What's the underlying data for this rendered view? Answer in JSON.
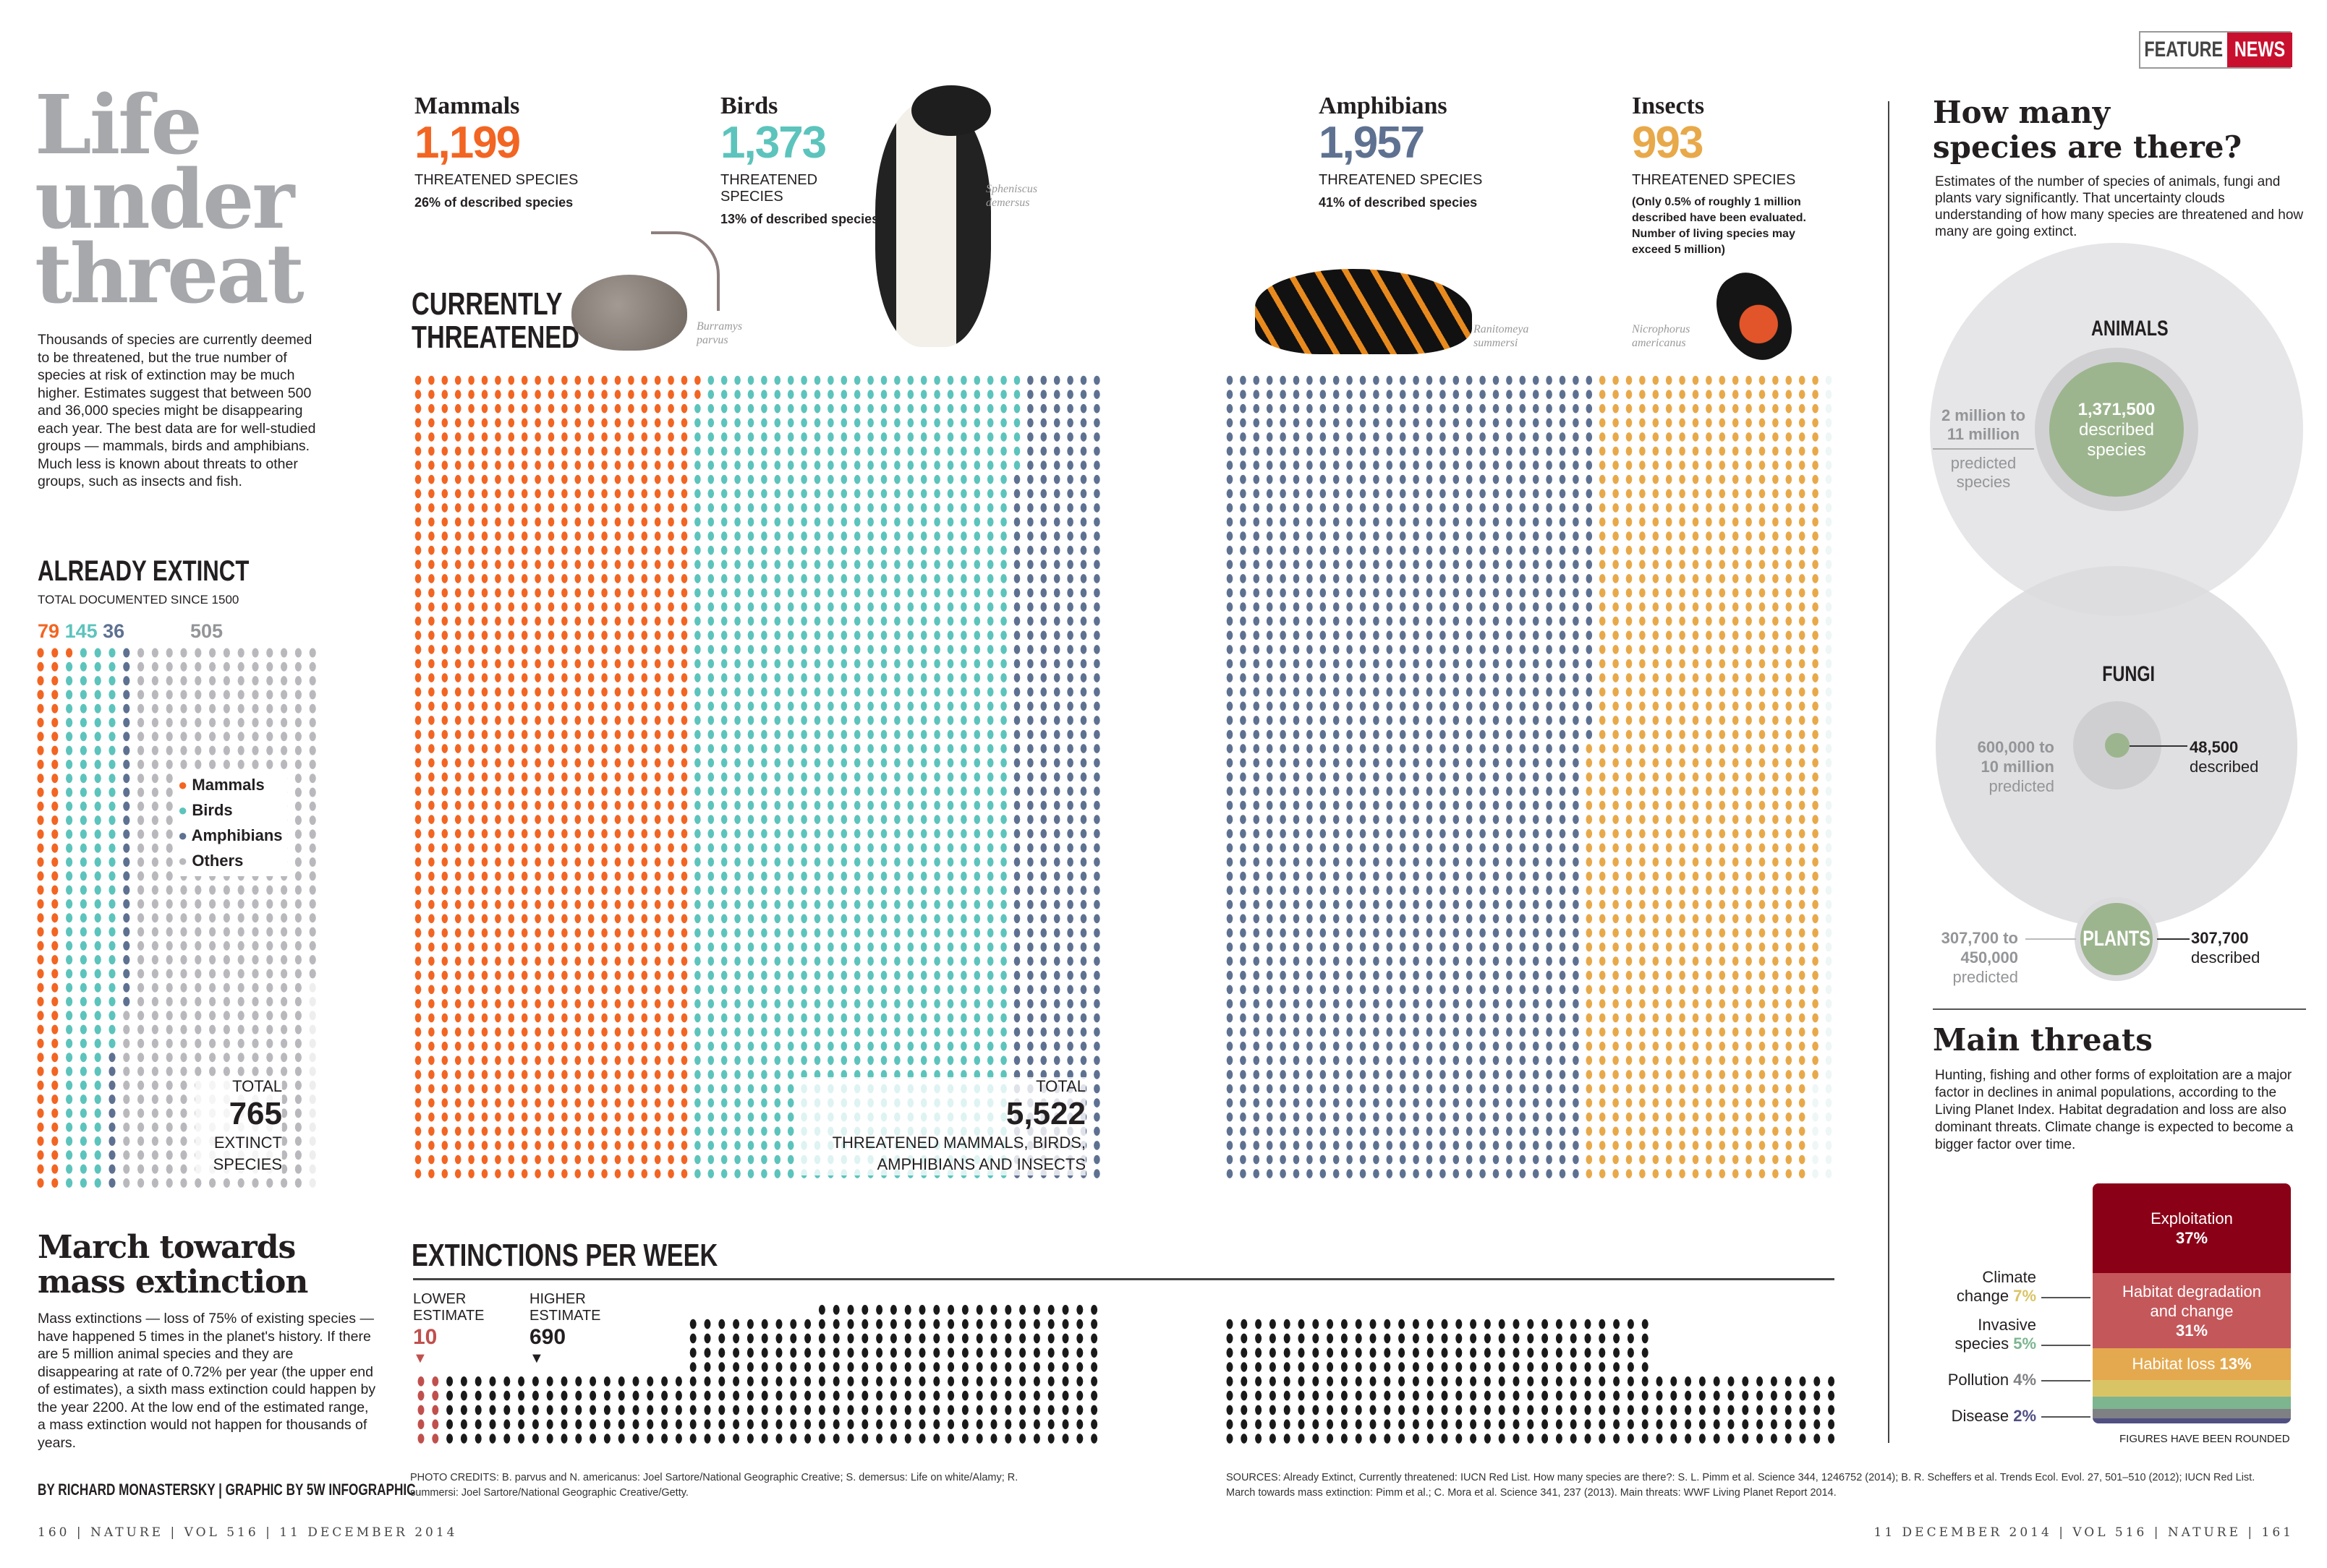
{
  "badge": {
    "left": "FEATURE",
    "right": "NEWS",
    "accent": "#c8102e"
  },
  "title": [
    "Life",
    "under",
    "threat"
  ],
  "intro": "Thousands of species are currently deemed to be threatened, but the true number of species at risk of extinction may be much higher. Estimates suggest that between 500 and 36,000 species might be disappearing each year. The best data are for well-studied groups — mammals, birds and amphibians. Much less is known about threats to other groups, such as insects and fish.",
  "extinct": {
    "heading": "ALREADY EXTINCT",
    "sub": "TOTAL DOCUMENTED SINCE 1500",
    "counts": {
      "mammals": "79",
      "birds": "145",
      "amphibians": "36",
      "others": "505"
    },
    "legend": [
      "Mammals",
      "Birds",
      "Amphibians",
      "Others"
    ],
    "total_label": "TOTAL",
    "total": "765",
    "total_sub1": "EXTINCT",
    "total_sub2": "SPECIES"
  },
  "threatened": {
    "heading1": "CURRENTLY",
    "heading2": "THREATENED",
    "groups": [
      {
        "name": "Mammals",
        "count": "1,199",
        "sub": "THREATENED SPECIES",
        "note": "26% of described species",
        "latin1": "Burramys",
        "latin2": "parvus"
      },
      {
        "name": "Birds",
        "count": "1,373",
        "sub": "THREATENED SPECIES",
        "note": "13% of described species",
        "latin1": "Spheniscus",
        "latin2": "demersus"
      },
      {
        "name": "Amphibians",
        "count": "1,957",
        "sub": "THREATENED SPECIES",
        "note": "41% of described species",
        "latin1": "Ranitomeya",
        "latin2": "summersi"
      },
      {
        "name": "Insects",
        "count": "993",
        "sub": "THREATENED SPECIES",
        "note": "(Only 0.5% of roughly 1 million described have been evaluated. Number of living species may exceed 5 million)",
        "latin1": "Nicrophorus",
        "latin2": "americanus"
      }
    ],
    "total_label": "TOTAL",
    "total": "5,522",
    "total_sub1": "THREATENED MAMMALS, BIRDS,",
    "total_sub2": "AMPHIBIANS AND INSECTS"
  },
  "colors": {
    "mammals": "#f26522",
    "birds": "#5cc4bc",
    "amphibians": "#5e7191",
    "insects": "#e8a94a",
    "others": "#b9b9bd",
    "week": "#1a1a1a",
    "week_low": "#c0504d"
  },
  "march": {
    "title1": "March towards",
    "title2": "mass extinction",
    "body": "Mass extinctions — loss of 75% of existing species — have happened 5 times in the planet's history. If there are 5 million animal species and they are disappearing at rate of 0.72% per year (the upper end of estimates), a sixth mass extinction could happen by the year 2200. At the low end of the estimated range, a mass extinction would not happen for thousands of years.",
    "byline": "BY RICHARD MONASTERSKY | GRAPHIC BY 5W INFOGRAPHIC"
  },
  "week": {
    "heading": "EXTINCTIONS PER WEEK",
    "lower_label1": "LOWER",
    "lower_label2": "ESTIMATE",
    "lower": "10",
    "higher_label1": "HIGHER",
    "higher_label2": "ESTIMATE",
    "higher": "690"
  },
  "species": {
    "title1": "How many",
    "title2": "species are there?",
    "body": "Estimates of the number of species of animals, fungi and plants vary significantly. That uncertainty clouds understanding of how many species are threatened and how many are going extinct.",
    "animals": {
      "label": "ANIMALS",
      "pred1": "2 million to",
      "pred2": "11 million",
      "pred3": "predicted",
      "pred4": "species",
      "desc1": "1,371,500",
      "desc2": "described",
      "desc3": "species"
    },
    "fungi": {
      "label": "FUNGI",
      "pred1": "600,000 to",
      "pred2": "10 million",
      "pred3": "predicted",
      "desc1": "48,500",
      "desc2": "described"
    },
    "plants": {
      "label": "PLANTS",
      "pred1": "307,700 to",
      "pred2": "450,000",
      "pred3": "predicted",
      "desc1": "307,700",
      "desc2": "described"
    },
    "green": "#9cb58e"
  },
  "threats": {
    "title": "Main threats",
    "body": "Hunting, fishing and other forms of exploitation are a major factor in declines in animal populations, according to the Living Planet Index. Habitat degradation and loss are also dominant threats. Climate change is expected to become a bigger factor over time.",
    "note": "FIGURES HAVE BEEN ROUNDED"
  },
  "chart_data": [
    {
      "type": "bar",
      "title": "ALREADY EXTINCT",
      "categories": [
        "Mammals",
        "Birds",
        "Amphibians",
        "Others"
      ],
      "values": [
        79,
        145,
        36,
        505
      ]
    },
    {
      "type": "bar",
      "title": "CURRENTLY THREATENED",
      "categories": [
        "Mammals",
        "Birds",
        "Amphibians",
        "Insects"
      ],
      "values": [
        1199,
        1373,
        1957,
        993
      ]
    },
    {
      "type": "bar",
      "title": "EXTINCTIONS PER WEEK",
      "categories": [
        "LOWER ESTIMATE",
        "HIGHER ESTIMATE"
      ],
      "values": [
        10,
        690
      ]
    },
    {
      "type": "table",
      "title": "How many species are there?",
      "rows": [
        {
          "group": "ANIMALS",
          "described": 1371500,
          "predicted": "2 million to 11 million"
        },
        {
          "group": "FUNGI",
          "described": 48500,
          "predicted": "600,000 to 10 million"
        },
        {
          "group": "PLANTS",
          "described": 307700,
          "predicted": "307,700 to 450,000"
        }
      ]
    },
    {
      "type": "bar",
      "title": "Main threats",
      "stacked": true,
      "series": [
        {
          "name": "Exploitation",
          "label": "Exploitation",
          "pct": "37%",
          "value": 37,
          "color": "#8a0017"
        },
        {
          "name": "Habitat degradation and change",
          "label": "Habitat degradation and change",
          "pct": "31%",
          "value": 31,
          "color": "#c4575a"
        },
        {
          "name": "Habitat loss",
          "label": "Habitat loss",
          "pct": "13%",
          "value": 13,
          "color": "#e4a94f"
        },
        {
          "name": "Climate change",
          "label1": "Climate",
          "label2": "change",
          "pct": "7%",
          "value": 7,
          "color": "#d9c465"
        },
        {
          "name": "Invasive species",
          "label1": "Invasive",
          "label2": "species",
          "pct": "5%",
          "value": 5,
          "color": "#7cb58f"
        },
        {
          "name": "Pollution",
          "label1": "Pollution",
          "pct": "4%",
          "value": 4,
          "color": "#7f8083"
        },
        {
          "name": "Disease",
          "label1": "Disease",
          "pct": "2%",
          "value": 2,
          "color": "#4f4f83"
        }
      ]
    }
  ],
  "credits": {
    "photo": "PHOTO CREDITS: B. parvus and N. americanus: Joel Sartore/National Geographic Creative; S. demersus: Life on white/Alamy; R. summersi: Joel Sartore/National Geographic Creative/Getty.",
    "sources": "SOURCES: Already Extinct, Currently threatened: IUCN Red List. How many species are there?: S. L. Pimm et al. Science 344, 1246752 (2014); B. R. Scheffers et al. Trends Ecol. Evol. 27, 501–510 (2012); IUCN Red List. March towards mass extinction: Pimm et al.; C. Mora et al. Science 341, 237 (2013). Main threats: WWF Living Planet Report 2014."
  },
  "footer": {
    "left": "160 | NATURE | VOL 516 | 11 DECEMBER 2014",
    "right": "11 DECEMBER 2014 | VOL 516 | NATURE | 161"
  }
}
